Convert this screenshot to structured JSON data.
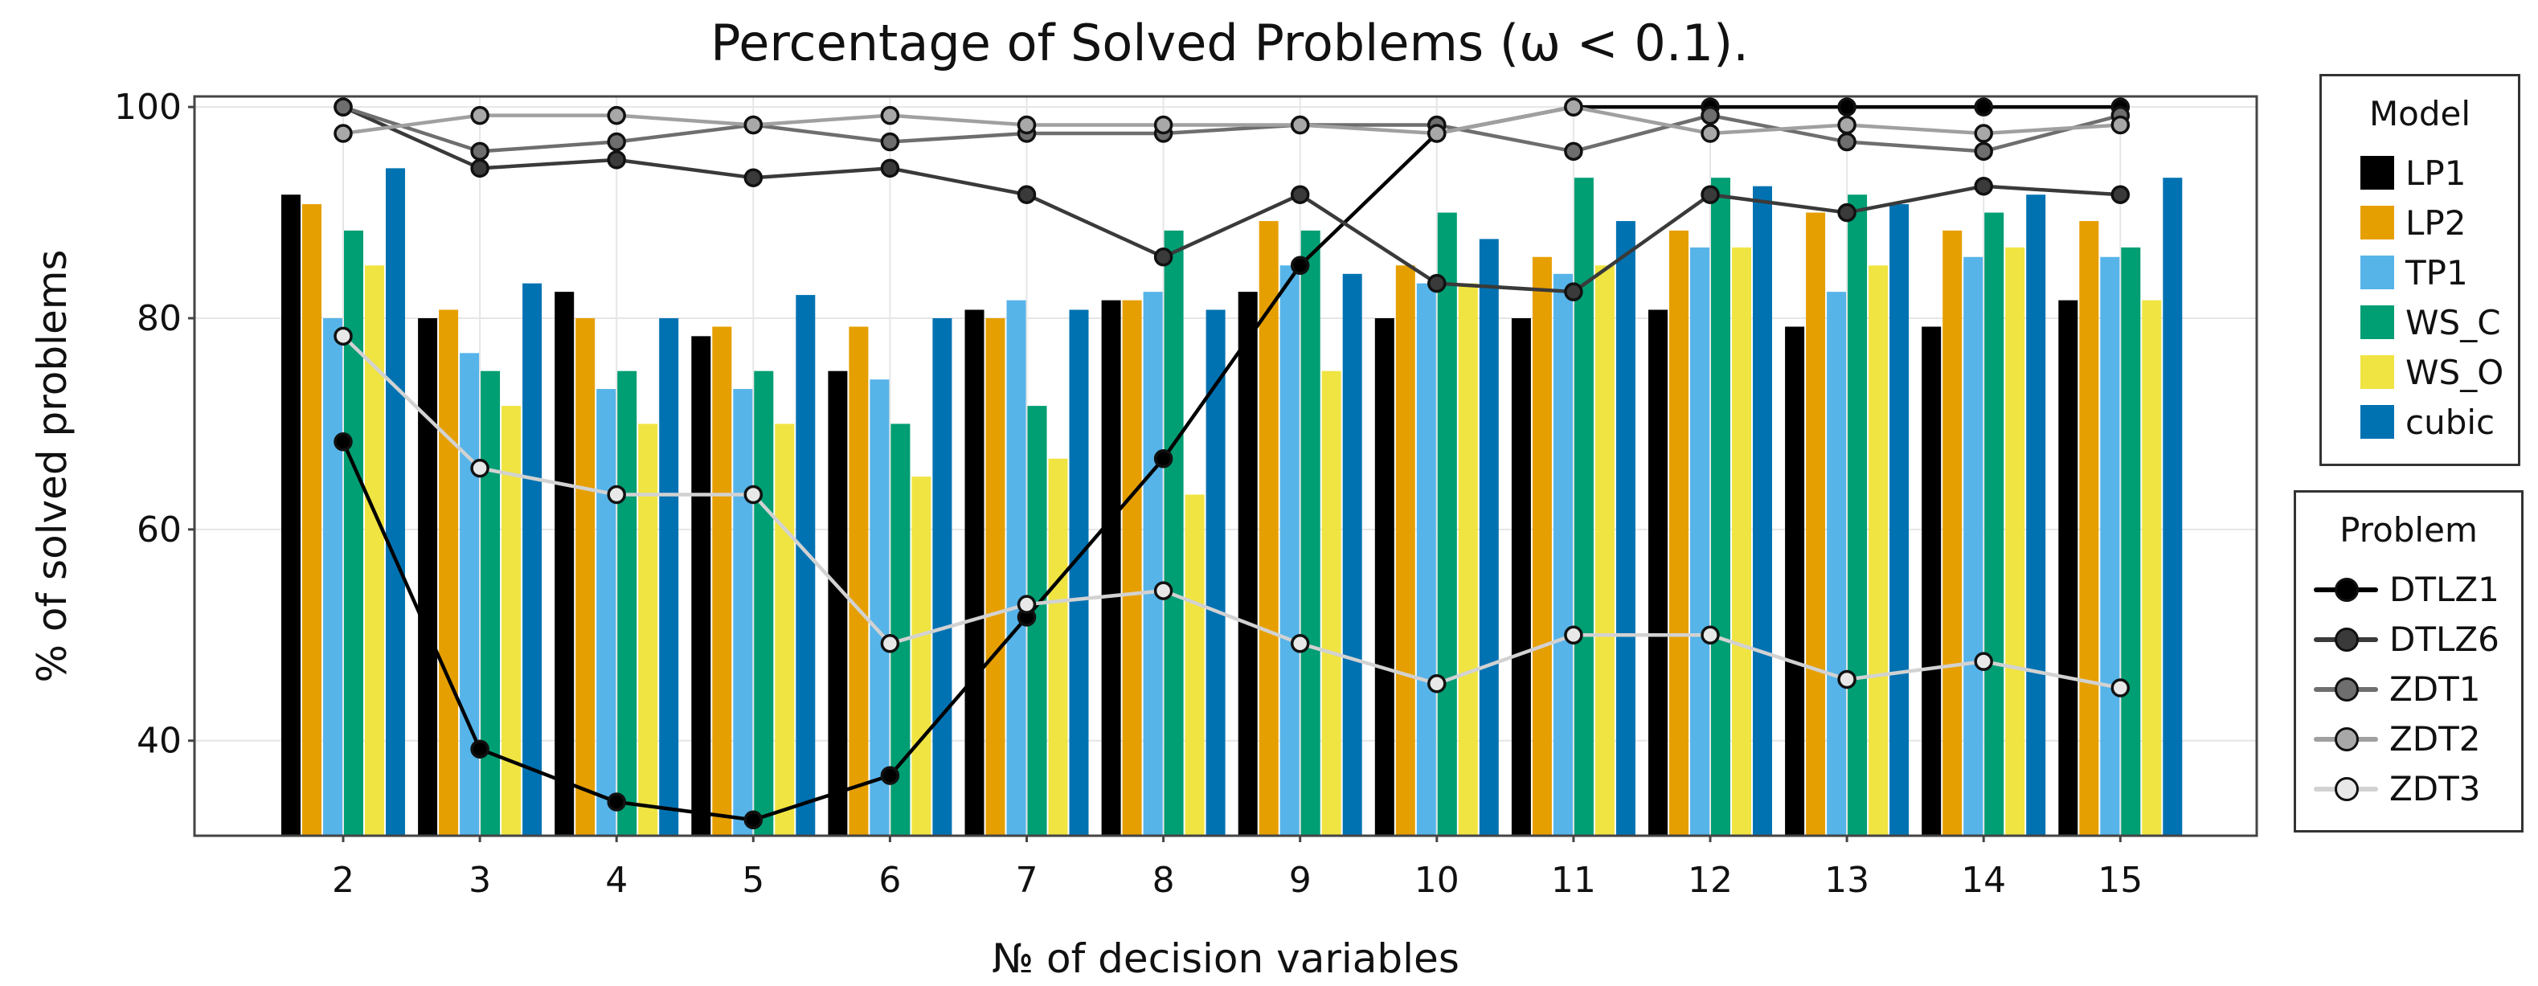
{
  "chart_data": {
    "type": "bar",
    "title": "Percentage of Solved Problems (ω < 0.1).",
    "xlabel": "№ of decision variables",
    "ylabel": "% of solved problems",
    "categories": [
      "2",
      "3",
      "4",
      "5",
      "6",
      "7",
      "8",
      "9",
      "10",
      "11",
      "12",
      "13",
      "14",
      "15"
    ],
    "ylim": [
      31,
      101
    ],
    "yticks": [
      "40",
      "60",
      "80",
      "100"
    ],
    "grid": true,
    "series": [
      {
        "name": "LP1",
        "color": "#000000",
        "values": [
          91.7,
          80.0,
          82.5,
          78.3,
          75.0,
          80.8,
          81.7,
          82.5,
          80.0,
          80.0,
          80.8,
          79.2,
          79.2,
          81.7
        ]
      },
      {
        "name": "LP2",
        "color": "#E69F00",
        "values": [
          90.8,
          80.8,
          80.0,
          79.2,
          79.2,
          80.0,
          81.7,
          89.2,
          85.0,
          85.8,
          88.3,
          90.0,
          88.3,
          89.2
        ]
      },
      {
        "name": "TP1",
        "color": "#56B4E9",
        "values": [
          80.0,
          76.7,
          73.3,
          73.3,
          74.2,
          81.7,
          82.5,
          85.0,
          83.3,
          84.2,
          86.7,
          82.5,
          85.8,
          85.8
        ]
      },
      {
        "name": "WS_C",
        "color": "#009E73",
        "values": [
          88.3,
          75.0,
          75.0,
          75.0,
          70.0,
          71.7,
          88.3,
          88.3,
          90.0,
          93.3,
          93.3,
          91.7,
          90.0,
          86.7
        ]
      },
      {
        "name": "WS_O",
        "color": "#F0E442",
        "values": [
          85.0,
          71.7,
          70.0,
          70.0,
          65.0,
          66.7,
          63.3,
          75.0,
          83.3,
          85.0,
          86.7,
          85.0,
          86.7,
          81.7
        ]
      },
      {
        "name": "cubic",
        "color": "#0072B2",
        "values": [
          94.2,
          83.3,
          80.0,
          82.2,
          80.0,
          80.8,
          80.8,
          84.2,
          87.5,
          89.2,
          92.5,
          90.8,
          91.7,
          93.3
        ]
      }
    ],
    "lines": [
      {
        "name": "DTLZ1",
        "color": "#000000",
        "marker": "#000000",
        "values": [
          68.3,
          39.2,
          34.2,
          32.5,
          36.7,
          51.7,
          66.7,
          85.0,
          97.5,
          100.0,
          100.0,
          100.0,
          100.0,
          100.0
        ]
      },
      {
        "name": "DTLZ6",
        "color": "#3a3a3a",
        "marker": "#3a3a3a",
        "values": [
          100.0,
          94.2,
          95.0,
          93.3,
          94.2,
          91.7,
          85.8,
          91.7,
          83.3,
          82.5,
          91.7,
          90.0,
          92.5,
          91.7
        ]
      },
      {
        "name": "ZDT1",
        "color": "#6e6e6e",
        "marker": "#6e6e6e",
        "values": [
          100.0,
          95.8,
          96.7,
          98.3,
          96.7,
          97.5,
          97.5,
          98.3,
          98.3,
          95.8,
          99.2,
          96.7,
          95.8,
          99.2
        ]
      },
      {
        "name": "ZDT2",
        "color": "#a0a0a0",
        "marker": "#a8a8a8",
        "values": [
          97.5,
          99.2,
          99.2,
          98.3,
          99.2,
          98.3,
          98.3,
          98.3,
          97.5,
          100.0,
          97.5,
          98.3,
          97.5,
          98.3
        ]
      },
      {
        "name": "ZDT3",
        "color": "#d2d2d2",
        "marker": "#e8e8e8",
        "values": [
          78.3,
          65.8,
          63.3,
          63.3,
          49.2,
          52.9,
          54.2,
          49.2,
          45.4,
          50.0,
          50.0,
          45.8,
          47.5,
          45.0
        ]
      }
    ]
  },
  "legend": {
    "model_title": "Model",
    "problem_title": "Problem"
  }
}
